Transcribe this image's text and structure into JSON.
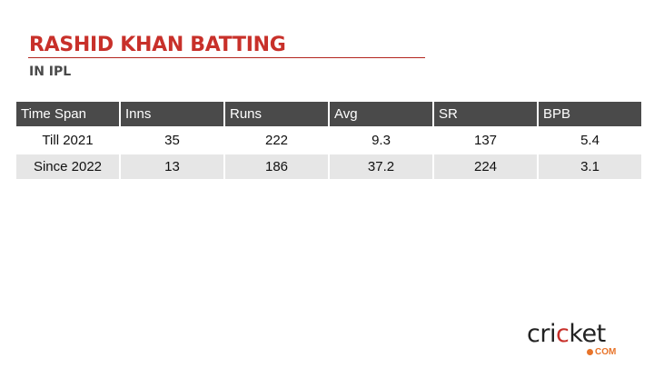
{
  "title": "RASHID KHAN BATTING",
  "subtitle": "IN IPL",
  "table": {
    "headers": [
      "Time Span",
      "Inns",
      "Runs",
      "Avg",
      "SR",
      "BPB"
    ],
    "rows": [
      [
        "Till 2021",
        "35",
        "222",
        "9.3",
        "137",
        "5.4"
      ],
      [
        "Since 2022",
        "13",
        "186",
        "37.2",
        "224",
        "3.1"
      ]
    ]
  },
  "logo": {
    "text": "cricket",
    "suffix": "COM"
  },
  "colors": {
    "accent": "#c8302a",
    "header_bg": "#4a4a4a",
    "alt_row": "#e6e6e6",
    "logo_orange": "#e8742a"
  }
}
